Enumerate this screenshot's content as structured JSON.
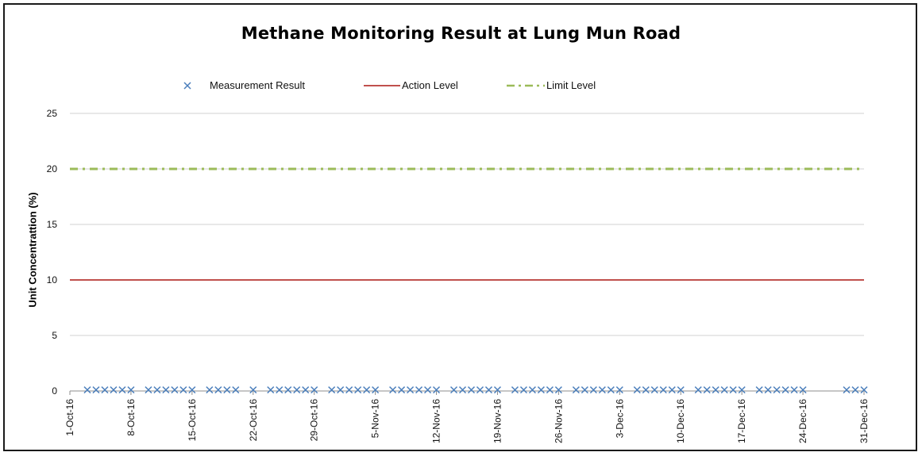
{
  "chart_data": {
    "type": "scatter",
    "title": "Methane Monitoring Result at Lung Mun Road",
    "ylabel": "Unit Concentrattion (%)",
    "xlabel": "",
    "ylim": [
      0,
      25
    ],
    "yticks": [
      0,
      5,
      10,
      15,
      20,
      25
    ],
    "x_start": "1-Oct-16",
    "x_end": "31-Dec-16",
    "xtick_labels": [
      "1-Oct-16",
      "8-Oct-16",
      "15-Oct-16",
      "22-Oct-16",
      "29-Oct-16",
      "5-Nov-16",
      "12-Nov-16",
      "19-Nov-16",
      "26-Nov-16",
      "3-Dec-16",
      "10-Dec-16",
      "17-Dec-16",
      "24-Dec-16",
      "31-Dec-16"
    ],
    "grid": "horizontal",
    "legend_position": "top",
    "series": [
      {
        "name": "Measurement Result",
        "style": "x-marker",
        "color": "#4a7ebb",
        "x": [
          "3-Oct-16",
          "4-Oct-16",
          "5-Oct-16",
          "6-Oct-16",
          "7-Oct-16",
          "8-Oct-16",
          "10-Oct-16",
          "11-Oct-16",
          "12-Oct-16",
          "13-Oct-16",
          "14-Oct-16",
          "15-Oct-16",
          "17-Oct-16",
          "18-Oct-16",
          "19-Oct-16",
          "20-Oct-16",
          "22-Oct-16",
          "24-Oct-16",
          "25-Oct-16",
          "26-Oct-16",
          "27-Oct-16",
          "28-Oct-16",
          "29-Oct-16",
          "31-Oct-16",
          "1-Nov-16",
          "2-Nov-16",
          "3-Nov-16",
          "4-Nov-16",
          "5-Nov-16",
          "7-Nov-16",
          "8-Nov-16",
          "9-Nov-16",
          "10-Nov-16",
          "11-Nov-16",
          "12-Nov-16",
          "14-Nov-16",
          "15-Nov-16",
          "16-Nov-16",
          "17-Nov-16",
          "18-Nov-16",
          "19-Nov-16",
          "21-Nov-16",
          "22-Nov-16",
          "23-Nov-16",
          "24-Nov-16",
          "25-Nov-16",
          "26-Nov-16",
          "28-Nov-16",
          "29-Nov-16",
          "30-Nov-16",
          "1-Dec-16",
          "2-Dec-16",
          "3-Dec-16",
          "5-Dec-16",
          "6-Dec-16",
          "7-Dec-16",
          "8-Dec-16",
          "9-Dec-16",
          "10-Dec-16",
          "12-Dec-16",
          "13-Dec-16",
          "14-Dec-16",
          "15-Dec-16",
          "16-Dec-16",
          "17-Dec-16",
          "19-Dec-16",
          "20-Dec-16",
          "21-Dec-16",
          "22-Dec-16",
          "23-Dec-16",
          "24-Dec-16",
          "29-Dec-16",
          "30-Dec-16",
          "31-Dec-16"
        ],
        "y_value": 0.1
      },
      {
        "name": "Action Level",
        "style": "solid-line",
        "color": "#c0504d",
        "y_value": 10
      },
      {
        "name": "Limit Level",
        "style": "dash-dot-line",
        "color": "#9bbb59",
        "y_value": 20
      }
    ]
  }
}
